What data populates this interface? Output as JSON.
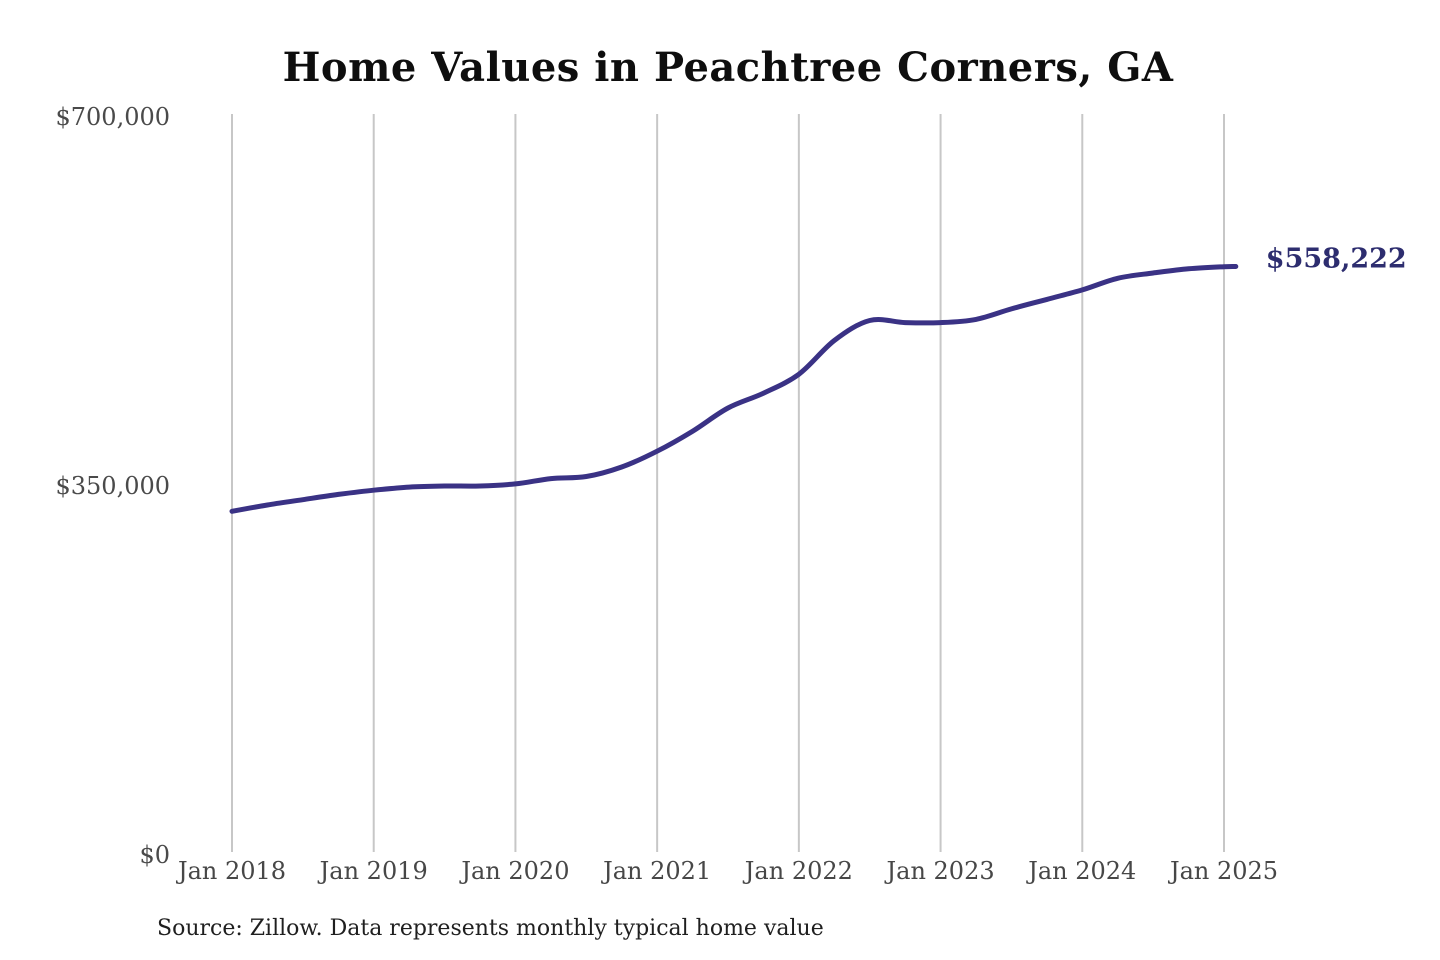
{
  "chart": {
    "title": "Home Values in Peachtree Corners, GA",
    "end_label": "$558,222",
    "source": "Source: Zillow. Data represents monthly typical home value",
    "colors": {
      "line": "#3a3285",
      "end_label": "#2d2d6f",
      "gridline": "#c7c7c7",
      "title": "#0e0e0e",
      "tick_label": "#4a4a4a"
    }
  },
  "chart_data": {
    "type": "line",
    "title": "Home Values in Peachtree Corners, GA",
    "series_name": "Monthly typical home value ($)",
    "x": [
      "2018-01",
      "2018-04",
      "2018-07",
      "2018-10",
      "2019-01",
      "2019-04",
      "2019-07",
      "2019-10",
      "2020-01",
      "2020-04",
      "2020-07",
      "2020-10",
      "2021-01",
      "2021-04",
      "2021-07",
      "2021-10",
      "2022-01",
      "2022-04",
      "2022-07",
      "2022-10",
      "2023-01",
      "2023-04",
      "2023-07",
      "2023-10",
      "2024-01",
      "2024-04",
      "2024-07",
      "2024-10",
      "2025-01",
      "2025-02"
    ],
    "values": [
      326000,
      332000,
      337000,
      342000,
      346000,
      349000,
      350000,
      350000,
      352000,
      357000,
      359000,
      368000,
      383000,
      402000,
      424000,
      438000,
      456000,
      488000,
      507000,
      505000,
      505000,
      508000,
      518000,
      527000,
      536000,
      547000,
      552000,
      556000,
      558000,
      558222
    ],
    "latest_value": 558222,
    "latest_value_label": "$558,222",
    "ylim": [
      0,
      700000
    ],
    "yticks": [
      {
        "value": 0,
        "label": "$0"
      },
      {
        "value": 350000,
        "label": "$350,000"
      },
      {
        "value": 700000,
        "label": "$700,000"
      }
    ],
    "xticks": [
      {
        "date": "2018-01",
        "label": "Jan 2018"
      },
      {
        "date": "2019-01",
        "label": "Jan 2019"
      },
      {
        "date": "2020-01",
        "label": "Jan 2020"
      },
      {
        "date": "2021-01",
        "label": "Jan 2021"
      },
      {
        "date": "2022-01",
        "label": "Jan 2022"
      },
      {
        "date": "2023-01",
        "label": "Jan 2023"
      },
      {
        "date": "2024-01",
        "label": "Jan 2024"
      },
      {
        "date": "2025-01",
        "label": "Jan 2025"
      }
    ],
    "grid": "vertical-only",
    "legend": "none",
    "source": "Source: Zillow. Data represents monthly typical home value"
  }
}
